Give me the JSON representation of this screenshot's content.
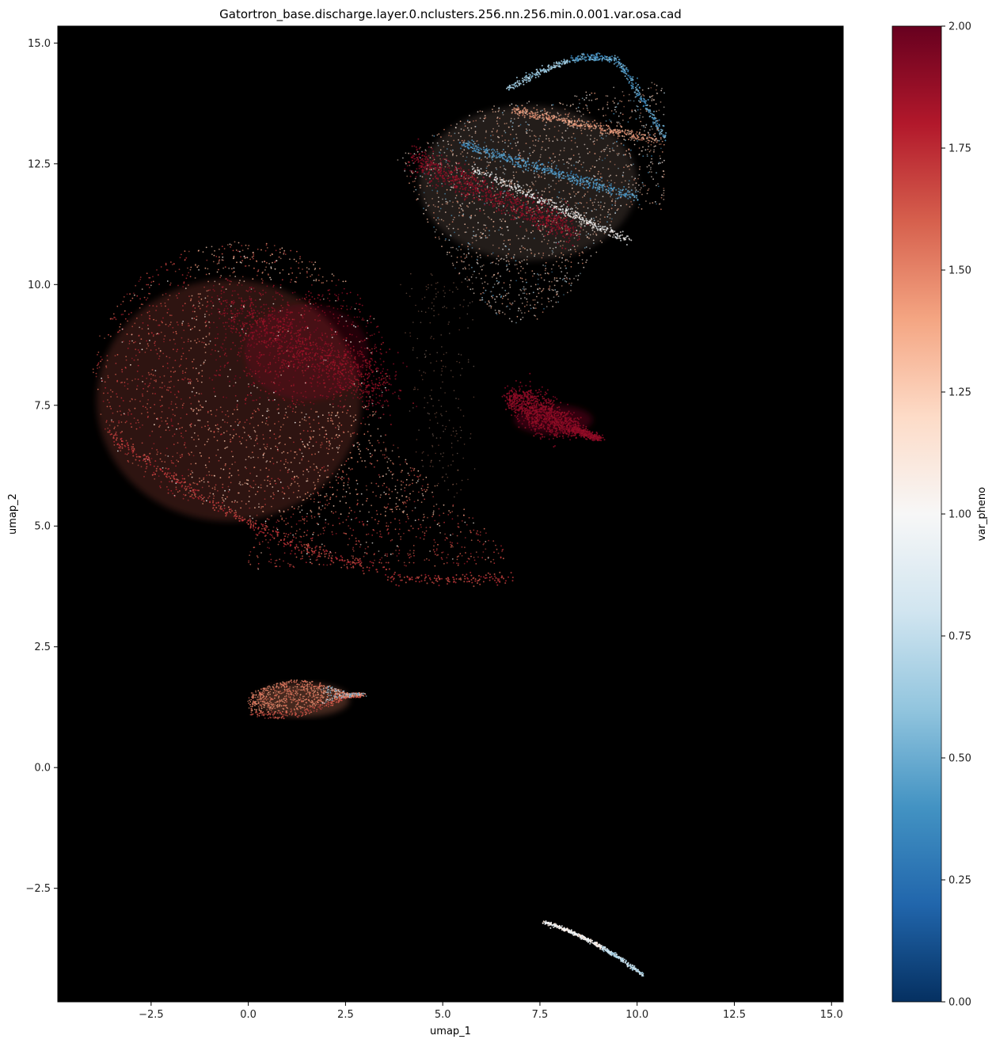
{
  "chart_data": {
    "type": "scatter",
    "title": "Gatortron_base.discharge.layer.0.nclusters.256.nn.256.min.0.001.var.osa.cad",
    "xlabel": "umap_1",
    "ylabel": "umap_2",
    "xlim": [
      -4.9,
      15.3
    ],
    "ylim": [
      -4.85,
      15.35
    ],
    "xticks": [
      "−2.5",
      "0.0",
      "2.5",
      "5.0",
      "7.5",
      "10.0",
      "12.5",
      "15.0"
    ],
    "yticks": [
      "−2.5",
      "0.0",
      "2.5",
      "5.0",
      "7.5",
      "10.0",
      "12.5",
      "15.0"
    ],
    "xtick_values": [
      -2.5,
      0.0,
      2.5,
      5.0,
      7.5,
      10.0,
      12.5,
      15.0
    ],
    "ytick_values": [
      -2.5,
      0.0,
      2.5,
      5.0,
      7.5,
      10.0,
      12.5,
      15.0
    ],
    "background": "#000000",
    "grid": false,
    "colorbar": {
      "label": "var_pheno",
      "range": [
        0.0,
        2.0
      ],
      "colormap": "RdBu_r",
      "ticks": [
        "0.00",
        "0.25",
        "0.50",
        "0.75",
        "1.00",
        "1.25",
        "1.50",
        "1.75",
        "2.00"
      ],
      "tick_values": [
        0.0,
        0.25,
        0.5,
        0.75,
        1.0,
        1.25,
        1.5,
        1.75,
        2.0
      ],
      "stops": [
        "#053061",
        "#2166ac",
        "#4393c3",
        "#92c5de",
        "#d1e5f0",
        "#f7f7f7",
        "#fddbc7",
        "#f4a582",
        "#d6604d",
        "#b2182b",
        "#67001f"
      ]
    },
    "clusters": [
      {
        "label": "large-teardrop",
        "x_range": [
          -3.9,
          6.8
        ],
        "y_range": [
          3.9,
          10.9
        ],
        "dominant_value": 1.65
      },
      {
        "label": "upper-cluster",
        "x_range": [
          3.8,
          10.7
        ],
        "y_range": [
          8.8,
          14.7
        ],
        "dominant_value": 1.2
      },
      {
        "label": "red-streak",
        "x_range": [
          6.7,
          9.0
        ],
        "y_range": [
          6.7,
          7.8
        ],
        "dominant_value": 1.85
      },
      {
        "label": "small-lobe",
        "x_range": [
          0.0,
          3.0
        ],
        "y_range": [
          0.9,
          1.9
        ],
        "dominant_value": 1.45
      },
      {
        "label": "bottom-arc",
        "x_range": [
          7.6,
          10.2
        ],
        "y_range": [
          -4.3,
          -3.2
        ],
        "dominant_value": 0.85
      }
    ]
  }
}
